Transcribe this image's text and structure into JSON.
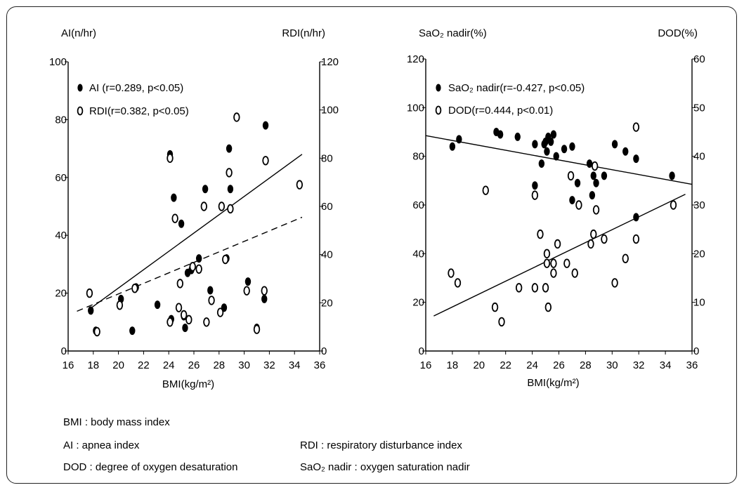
{
  "chart_data": [
    {
      "type": "scatter",
      "x_label": "BMI(kg/m²)",
      "y_left_label": "AI(n/hr)",
      "y_right_label": "RDI(n/hr)",
      "xlim": [
        16,
        36
      ],
      "ylim_left": [
        0,
        100
      ],
      "ylim_right": [
        0,
        120
      ],
      "x_ticks": [
        "16",
        "18",
        "20",
        "22",
        "24",
        "26",
        "28",
        "30",
        "32",
        "34",
        "36"
      ],
      "y_left_ticks": [
        "0",
        "20",
        "40",
        "60",
        "80",
        "100"
      ],
      "y_right_ticks": [
        "0",
        "20",
        "40",
        "60",
        "80",
        "100",
        "120"
      ],
      "legend": [
        {
          "marker": "●",
          "text": "AI   (r=0.289, p<0.05)"
        },
        {
          "marker": "0",
          "text": "RDI(r=0.382, p<0.05)"
        }
      ],
      "series": [
        {
          "name": "AI",
          "axis": "left",
          "marker": "filled",
          "points": [
            [
              17.8,
              14
            ],
            [
              18.2,
              7
            ],
            [
              20.2,
              18
            ],
            [
              21.1,
              7
            ],
            [
              21.4,
              22
            ],
            [
              23.1,
              16
            ],
            [
              24.1,
              68
            ],
            [
              24.4,
              53
            ],
            [
              24.2,
              11
            ],
            [
              24.8,
              15
            ],
            [
              25.0,
              44
            ],
            [
              25.2,
              12
            ],
            [
              25.5,
              27
            ],
            [
              25.3,
              8
            ],
            [
              25.8,
              28
            ],
            [
              26.4,
              32
            ],
            [
              26.9,
              56
            ],
            [
              27.0,
              10
            ],
            [
              27.3,
              21
            ],
            [
              28.4,
              15
            ],
            [
              28.6,
              32
            ],
            [
              28.8,
              70
            ],
            [
              28.9,
              56
            ],
            [
              30.3,
              24
            ],
            [
              31.0,
              8
            ],
            [
              31.6,
              18
            ],
            [
              31.7,
              78
            ]
          ]
        },
        {
          "name": "RDI",
          "axis": "right",
          "marker": "open",
          "points": [
            [
              17.7,
              24
            ],
            [
              18.3,
              8
            ],
            [
              20.1,
              19
            ],
            [
              21.3,
              26
            ],
            [
              24.1,
              12
            ],
            [
              24.1,
              80
            ],
            [
              24.5,
              55
            ],
            [
              24.9,
              28
            ],
            [
              24.8,
              18
            ],
            [
              25.2,
              15
            ],
            [
              25.6,
              13
            ],
            [
              25.9,
              35
            ],
            [
              26.4,
              34
            ],
            [
              26.8,
              60
            ],
            [
              27.0,
              12
            ],
            [
              27.4,
              21
            ],
            [
              28.1,
              16
            ],
            [
              28.2,
              60
            ],
            [
              28.5,
              38
            ],
            [
              28.8,
              74
            ],
            [
              28.9,
              59
            ],
            [
              29.4,
              97
            ],
            [
              30.2,
              25
            ],
            [
              31.0,
              9
            ],
            [
              31.6,
              25
            ],
            [
              31.7,
              79
            ],
            [
              34.4,
              69
            ]
          ]
        }
      ],
      "fit_lines": [
        {
          "name": "AI fit",
          "axis": "left",
          "style": "solid",
          "from": [
            17.7,
            14.5
          ],
          "to": [
            34.6,
            68
          ]
        },
        {
          "name": "RDI fit",
          "axis": "right",
          "style": "dashed",
          "from": [
            16.7,
            16.5
          ],
          "to": [
            34.6,
            55.5
          ]
        }
      ]
    },
    {
      "type": "scatter",
      "x_label": "BMI(kg/m²)",
      "y_left_label": "SaO₂ nadir(%)",
      "y_right_label": "DOD(%)",
      "xlim": [
        16,
        36
      ],
      "ylim_left": [
        0,
        120
      ],
      "ylim_right": [
        0,
        60
      ],
      "x_ticks": [
        "16",
        "18",
        "20",
        "22",
        "24",
        "26",
        "28",
        "30",
        "32",
        "34",
        "36"
      ],
      "y_left_ticks": [
        "0",
        "20",
        "40",
        "60",
        "80",
        "100",
        "120"
      ],
      "y_right_ticks": [
        "0",
        "10",
        "20",
        "30",
        "40",
        "50",
        "60"
      ],
      "legend": [
        {
          "marker": "●",
          "text": "SaO₂ nadir(r=-0.427, p<0.05)"
        },
        {
          "marker": "0",
          "text": "DOD(r=0.444, p<0.01)"
        }
      ],
      "series": [
        {
          "name": "SaO₂ nadir",
          "axis": "left",
          "marker": "filled",
          "points": [
            [
              18.0,
              84
            ],
            [
              18.5,
              87
            ],
            [
              21.3,
              90
            ],
            [
              21.6,
              89
            ],
            [
              22.9,
              88
            ],
            [
              24.2,
              85
            ],
            [
              24.2,
              68
            ],
            [
              24.7,
              77
            ],
            [
              24.9,
              85
            ],
            [
              25.0,
              86
            ],
            [
              25.2,
              88
            ],
            [
              25.1,
              82
            ],
            [
              25.4,
              86
            ],
            [
              25.6,
              89
            ],
            [
              25.8,
              80
            ],
            [
              26.4,
              83
            ],
            [
              27.0,
              84
            ],
            [
              27.0,
              62
            ],
            [
              27.4,
              69
            ],
            [
              28.3,
              77
            ],
            [
              28.5,
              64
            ],
            [
              28.6,
              72
            ],
            [
              28.8,
              69
            ],
            [
              29.4,
              72
            ],
            [
              30.2,
              85
            ],
            [
              31.0,
              82
            ],
            [
              31.8,
              79
            ],
            [
              31.8,
              55
            ],
            [
              34.5,
              72
            ]
          ]
        },
        {
          "name": "DOD",
          "axis": "right",
          "marker": "open",
          "points": [
            [
              17.9,
              16
            ],
            [
              18.4,
              14
            ],
            [
              20.5,
              33
            ],
            [
              21.2,
              9
            ],
            [
              21.7,
              6
            ],
            [
              23.0,
              13
            ],
            [
              24.2,
              32
            ],
            [
              24.2,
              13
            ],
            [
              24.6,
              24
            ],
            [
              25.0,
              13
            ],
            [
              25.1,
              20
            ],
            [
              25.1,
              18
            ],
            [
              25.2,
              9
            ],
            [
              25.6,
              18
            ],
            [
              25.6,
              16
            ],
            [
              25.9,
              22
            ],
            [
              26.6,
              18
            ],
            [
              26.9,
              36
            ],
            [
              27.2,
              16
            ],
            [
              27.5,
              30
            ],
            [
              28.4,
              22
            ],
            [
              28.6,
              24
            ],
            [
              28.7,
              38
            ],
            [
              28.8,
              29
            ],
            [
              29.4,
              23
            ],
            [
              30.2,
              14
            ],
            [
              31.0,
              19
            ],
            [
              31.8,
              23
            ],
            [
              31.8,
              46
            ],
            [
              34.6,
              30
            ]
          ]
        }
      ],
      "fit_lines": [
        {
          "name": "SaO₂ nadir fit",
          "axis": "left",
          "style": "solid",
          "from": [
            16.0,
            88.5
          ],
          "to": [
            36.0,
            68.5
          ]
        },
        {
          "name": "DOD fit",
          "axis": "right",
          "style": "solid",
          "from": [
            16.6,
            7.2
          ],
          "to": [
            35.5,
            32.2
          ]
        }
      ]
    }
  ],
  "footnotes": {
    "bmi": "BMI : body mass index",
    "ai": "AI : apnea index",
    "rdi": "RDI : respiratory  disturbance index",
    "dod": "DOD : degree of oxygen desaturation",
    "sao2": "SaO₂ nadir : oxygen saturation nadir"
  }
}
